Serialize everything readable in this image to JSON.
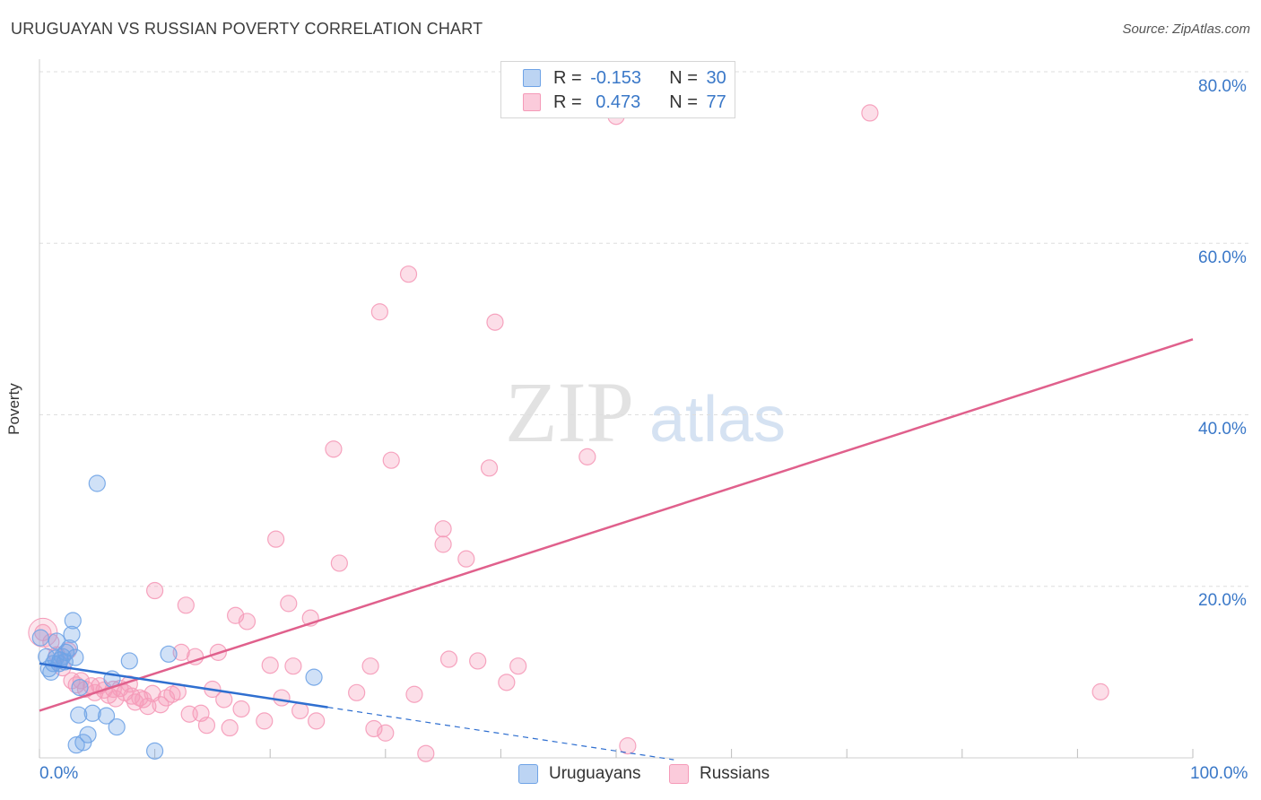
{
  "chart_data": {
    "type": "scatter",
    "title": "URUGUAYAN VS RUSSIAN POVERTY CORRELATION CHART",
    "source": "Source: ZipAtlas.com",
    "ylabel": "Poverty",
    "xlabel": "",
    "xlim": [
      0,
      100
    ],
    "ylim": [
      0,
      80
    ],
    "x_tick_labels": [
      "0.0%",
      "100.0%"
    ],
    "y_ticks": [
      20,
      40,
      60,
      80
    ],
    "y_tick_labels": [
      "20.0%",
      "40.0%",
      "60.0%",
      "80.0%"
    ],
    "grid": true,
    "legend_position": "top-center",
    "series": [
      {
        "name": "Uruguayans",
        "color": "#6fa3e6",
        "line_color": "#2f6fd0",
        "stats": {
          "r_label": "R = ",
          "r_value": "-0.153",
          "n_label": "N = ",
          "n_value": "30"
        },
        "trend": {
          "x0": 0,
          "y0": 11.0,
          "x1": 25,
          "y1": 5.9,
          "dash_to": 55
        },
        "points": [
          [
            0.1,
            14.0
          ],
          [
            0.6,
            11.8
          ],
          [
            0.8,
            10.4
          ],
          [
            1.0,
            10.0
          ],
          [
            1.2,
            11.0
          ],
          [
            1.4,
            11.6
          ],
          [
            1.5,
            13.6
          ],
          [
            1.7,
            11.0
          ],
          [
            1.8,
            11.4
          ],
          [
            2.0,
            11.8
          ],
          [
            2.2,
            11.2
          ],
          [
            2.3,
            12.3
          ],
          [
            2.6,
            12.8
          ],
          [
            2.8,
            14.4
          ],
          [
            2.9,
            16.0
          ],
          [
            3.1,
            11.7
          ],
          [
            3.2,
            1.5
          ],
          [
            3.5,
            8.2
          ],
          [
            3.4,
            5.0
          ],
          [
            3.8,
            1.8
          ],
          [
            4.2,
            2.7
          ],
          [
            4.6,
            5.2
          ],
          [
            5.0,
            32.0
          ],
          [
            5.8,
            4.9
          ],
          [
            6.3,
            9.2
          ],
          [
            6.7,
            3.6
          ],
          [
            7.8,
            11.3
          ],
          [
            10.0,
            0.8
          ],
          [
            11.2,
            12.1
          ],
          [
            23.8,
            9.4
          ]
        ]
      },
      {
        "name": "Russians",
        "color": "#f59ab8",
        "line_color": "#e0608c",
        "stats": {
          "r_label": "R = ",
          "r_value": "0.473",
          "n_label": "N = ",
          "n_value": "77"
        },
        "trend": {
          "x0": 0,
          "y0": 5.5,
          "x1": 100,
          "y1": 48.8
        },
        "points": [
          [
            0.3,
            14.6
          ],
          [
            1.0,
            13.5
          ],
          [
            1.5,
            12.0
          ],
          [
            2.0,
            10.5
          ],
          [
            2.5,
            12.5
          ],
          [
            2.8,
            9.0
          ],
          [
            3.2,
            8.5
          ],
          [
            3.6,
            9.0
          ],
          [
            4.0,
            8.0
          ],
          [
            4.5,
            8.4
          ],
          [
            4.8,
            7.6
          ],
          [
            5.2,
            8.4
          ],
          [
            5.6,
            7.9
          ],
          [
            6.0,
            7.3
          ],
          [
            6.4,
            8.0
          ],
          [
            6.6,
            6.9
          ],
          [
            7.0,
            8.1
          ],
          [
            7.4,
            7.6
          ],
          [
            7.8,
            8.6
          ],
          [
            8.0,
            7.2
          ],
          [
            8.3,
            6.5
          ],
          [
            8.7,
            7.0
          ],
          [
            9.0,
            6.8
          ],
          [
            9.4,
            6.0
          ],
          [
            9.8,
            7.5
          ],
          [
            10.0,
            19.5
          ],
          [
            10.5,
            6.2
          ],
          [
            11.0,
            7.0
          ],
          [
            11.5,
            7.4
          ],
          [
            12.0,
            7.7
          ],
          [
            12.3,
            12.3
          ],
          [
            12.7,
            17.8
          ],
          [
            13.0,
            5.1
          ],
          [
            13.5,
            11.8
          ],
          [
            14.0,
            5.2
          ],
          [
            14.5,
            3.8
          ],
          [
            15.0,
            8.0
          ],
          [
            15.5,
            12.3
          ],
          [
            16.0,
            6.8
          ],
          [
            16.5,
            3.5
          ],
          [
            17.0,
            16.6
          ],
          [
            17.5,
            5.7
          ],
          [
            18.0,
            15.9
          ],
          [
            19.5,
            4.3
          ],
          [
            20.0,
            10.8
          ],
          [
            20.5,
            25.5
          ],
          [
            21.0,
            7.0
          ],
          [
            21.6,
            18.0
          ],
          [
            22.0,
            10.7
          ],
          [
            22.6,
            5.5
          ],
          [
            23.5,
            16.3
          ],
          [
            24.0,
            4.3
          ],
          [
            25.5,
            36.0
          ],
          [
            26.0,
            22.7
          ],
          [
            27.5,
            7.6
          ],
          [
            28.7,
            10.7
          ],
          [
            29.0,
            3.4
          ],
          [
            29.5,
            52.0
          ],
          [
            30.5,
            34.7
          ],
          [
            32.0,
            56.4
          ],
          [
            32.5,
            7.4
          ],
          [
            33.5,
            0.5
          ],
          [
            35.0,
            26.7
          ],
          [
            35.0,
            24.9
          ],
          [
            35.5,
            11.5
          ],
          [
            37.0,
            23.2
          ],
          [
            38.0,
            11.3
          ],
          [
            39.0,
            33.8
          ],
          [
            39.5,
            50.8
          ],
          [
            40.5,
            8.8
          ],
          [
            41.5,
            10.7
          ],
          [
            47.5,
            35.1
          ],
          [
            50.0,
            74.8
          ],
          [
            51.0,
            1.4
          ],
          [
            72.0,
            75.2
          ],
          [
            92.0,
            7.7
          ],
          [
            30.0,
            2.9
          ]
        ]
      }
    ]
  }
}
